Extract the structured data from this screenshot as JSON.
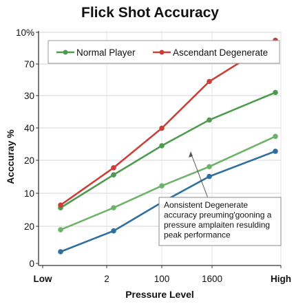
{
  "chart_data": {
    "type": "line",
    "title": "Flick Shot Accuracy",
    "xlabel": "Pressure Level",
    "ylabel": "Acccuray %",
    "x_tick_labels": [
      "Low",
      "2",
      "100",
      "1600",
      "High"
    ],
    "y_tick_labels": [
      "10%",
      "70",
      "30",
      "40",
      "20",
      "10",
      "20",
      "0"
    ],
    "grid": true,
    "legend_position": "top",
    "x": [
      1,
      2,
      3,
      4,
      5
    ],
    "series": [
      {
        "name": "Normal Player",
        "color": "#4f9a4f",
        "values": [
          10.5,
          16.5,
          21.8,
          26.5,
          31.5
        ]
      },
      {
        "name": "Ascendant Degenerate",
        "color": "#c9403a",
        "values": [
          11,
          17.8,
          25,
          33.5,
          41
        ]
      }
    ],
    "extra_series": [
      {
        "color": "#6fb26a",
        "values": [
          6.5,
          10.5,
          14.5,
          18,
          23.5
        ]
      },
      {
        "color": "#2e6f9e",
        "values": [
          2.5,
          6.3,
          11.5,
          16.2,
          20.8
        ]
      }
    ],
    "annotation": {
      "lines": [
        "Aonsistent Degenerate",
        "accuracy preuming'gooning a",
        "pressure amplaiten resulding",
        "peak performance"
      ]
    }
  }
}
